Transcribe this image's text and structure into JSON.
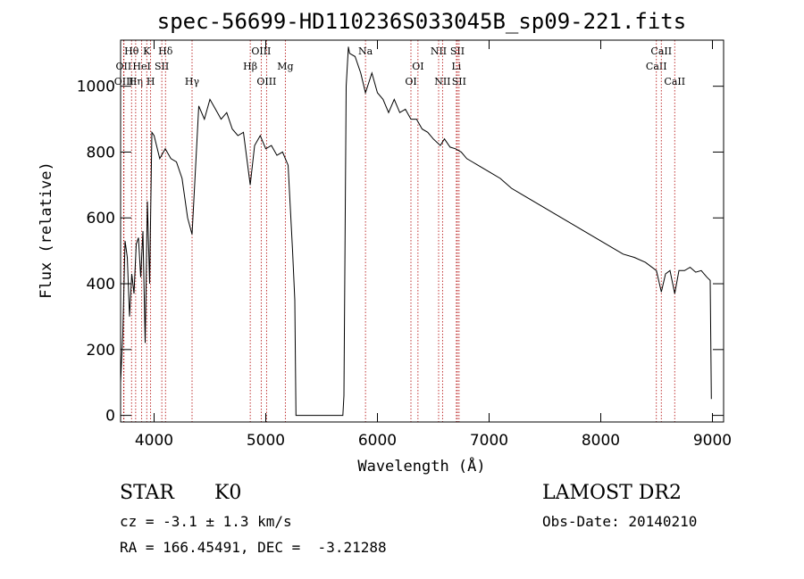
{
  "chart_data": {
    "type": "line",
    "title": "spec-56699-HD110236S033045B_sp09-221.fits",
    "xlabel": "Wavelength (Å)",
    "ylabel": "Flux (relative)",
    "xlim": [
      3700,
      9100
    ],
    "ylim": [
      -20,
      1140
    ],
    "xticks": [
      4000,
      5000,
      6000,
      7000,
      8000,
      9000
    ],
    "yticks": [
      0,
      200,
      400,
      600,
      800,
      1000
    ],
    "grid": false,
    "series": [
      {
        "x": [
          3700,
          3720,
          3740,
          3760,
          3780,
          3800,
          3820,
          3840,
          3860,
          3880,
          3900,
          3920,
          3940,
          3960,
          3980,
          4000,
          4050,
          4100,
          4150,
          4200,
          4250,
          4300,
          4340,
          4400,
          4450,
          4500,
          4550,
          4600,
          4650,
          4700,
          4750,
          4800,
          4861,
          4900,
          4950,
          5000,
          5050,
          5100,
          5150,
          5200,
          5240,
          5260,
          5270,
          5300,
          5500,
          5690,
          5700,
          5720,
          5740,
          5750,
          5800,
          5850,
          5893,
          5950,
          6000,
          6050,
          6100,
          6150,
          6200,
          6250,
          6300,
          6350,
          6400,
          6450,
          6500,
          6563,
          6600,
          6650,
          6700,
          6750,
          6800,
          6850,
          6900,
          7000,
          7100,
          7200,
          7300,
          7400,
          7500,
          7600,
          7700,
          7800,
          7900,
          8000,
          8100,
          8200,
          8300,
          8400,
          8498,
          8542,
          8580,
          8620,
          8662,
          8700,
          8750,
          8800,
          8850,
          8900,
          8950,
          8980,
          8990
        ],
        "y": [
          100,
          250,
          530,
          480,
          300,
          430,
          370,
          520,
          540,
          420,
          560,
          220,
          650,
          400,
          860,
          850,
          780,
          810,
          780,
          770,
          720,
          600,
          550,
          940,
          900,
          960,
          930,
          900,
          920,
          870,
          850,
          860,
          700,
          820,
          850,
          810,
          820,
          790,
          800,
          760,
          500,
          350,
          0,
          0,
          0,
          0,
          60,
          1000,
          1120,
          1100,
          1090,
          1040,
          980,
          1040,
          980,
          960,
          920,
          960,
          920,
          930,
          900,
          900,
          870,
          860,
          840,
          820,
          840,
          815,
          810,
          800,
          780,
          770,
          760,
          740,
          720,
          690,
          670,
          650,
          630,
          610,
          590,
          570,
          550,
          530,
          510,
          490,
          480,
          465,
          440,
          375,
          430,
          440,
          370,
          440,
          440,
          450,
          435,
          440,
          420,
          410,
          50
        ]
      }
    ],
    "spectral_lines": [
      {
        "label": "Hθ",
        "x": 3798,
        "row": 1
      },
      {
        "label": "OII",
        "x": 3727,
        "row": 2
      },
      {
        "label": "OIII",
        "x": 3730,
        "row": 3
      },
      {
        "label": "Hη",
        "x": 3835,
        "row": 3
      },
      {
        "label": "HeI",
        "x": 3889,
        "row": 2
      },
      {
        "label": "K",
        "x": 3934,
        "row": 1
      },
      {
        "label": "H",
        "x": 3969,
        "row": 3
      },
      {
        "label": "SII",
        "x": 4069,
        "row": 2
      },
      {
        "label": "Hδ",
        "x": 4102,
        "row": 1
      },
      {
        "label": "Hγ",
        "x": 4340,
        "row": 3
      },
      {
        "label": "Hβ",
        "x": 4861,
        "row": 2
      },
      {
        "label": "OIII",
        "x": 4959,
        "row": 1
      },
      {
        "label": "OIII",
        "x": 5007,
        "row": 3
      },
      {
        "label": "Mg",
        "x": 5175,
        "row": 2
      },
      {
        "label": "Na",
        "x": 5893,
        "row": 1
      },
      {
        "label": "OI",
        "x": 6300,
        "row": 3
      },
      {
        "label": "OI",
        "x": 6363,
        "row": 2
      },
      {
        "label": "NII",
        "x": 6548,
        "row": 1
      },
      {
        "label": "NII",
        "x": 6583,
        "row": 3
      },
      {
        "label": "SII",
        "x": 6716,
        "row": 1
      },
      {
        "label": "Li",
        "x": 6707,
        "row": 2
      },
      {
        "label": "SII",
        "x": 6731,
        "row": 3
      },
      {
        "label": "CaII",
        "x": 8498,
        "row": 2
      },
      {
        "label": "CaII",
        "x": 8542,
        "row": 1
      },
      {
        "label": "CaII",
        "x": 8662,
        "row": 3
      }
    ]
  },
  "info": {
    "object_class": "STAR",
    "subclass": "K0",
    "survey": "LAMOST DR2",
    "redshift": "cz = -3.1 ± 1.3 km/s",
    "obs_date": "Obs-Date: 20140210",
    "coords": "RA = 166.45491, DEC =  -3.21288"
  }
}
